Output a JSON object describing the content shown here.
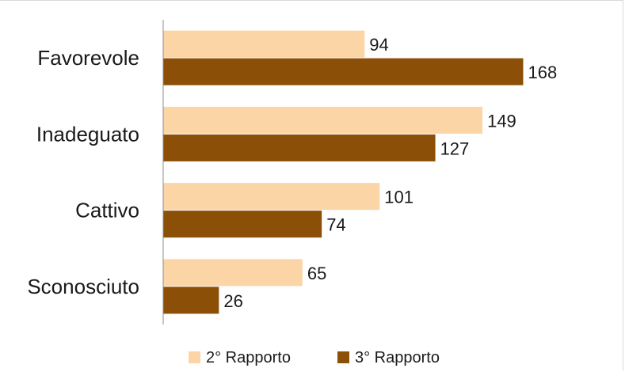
{
  "chart_data": {
    "type": "bar",
    "orientation": "horizontal",
    "categories": [
      "Favorevole",
      "Inadeguato",
      "Cattivo",
      "Sconosciuto"
    ],
    "series": [
      {
        "name": "2° Rapporto",
        "values": [
          94,
          149,
          101,
          65
        ],
        "color": "#fcd5a6"
      },
      {
        "name": "3° Rapporto",
        "values": [
          168,
          127,
          74,
          26
        ],
        "color": "#8b4f08"
      }
    ],
    "xlim": [
      0,
      190
    ],
    "grid": false,
    "legend_position": "bottom",
    "data_labels": true
  }
}
